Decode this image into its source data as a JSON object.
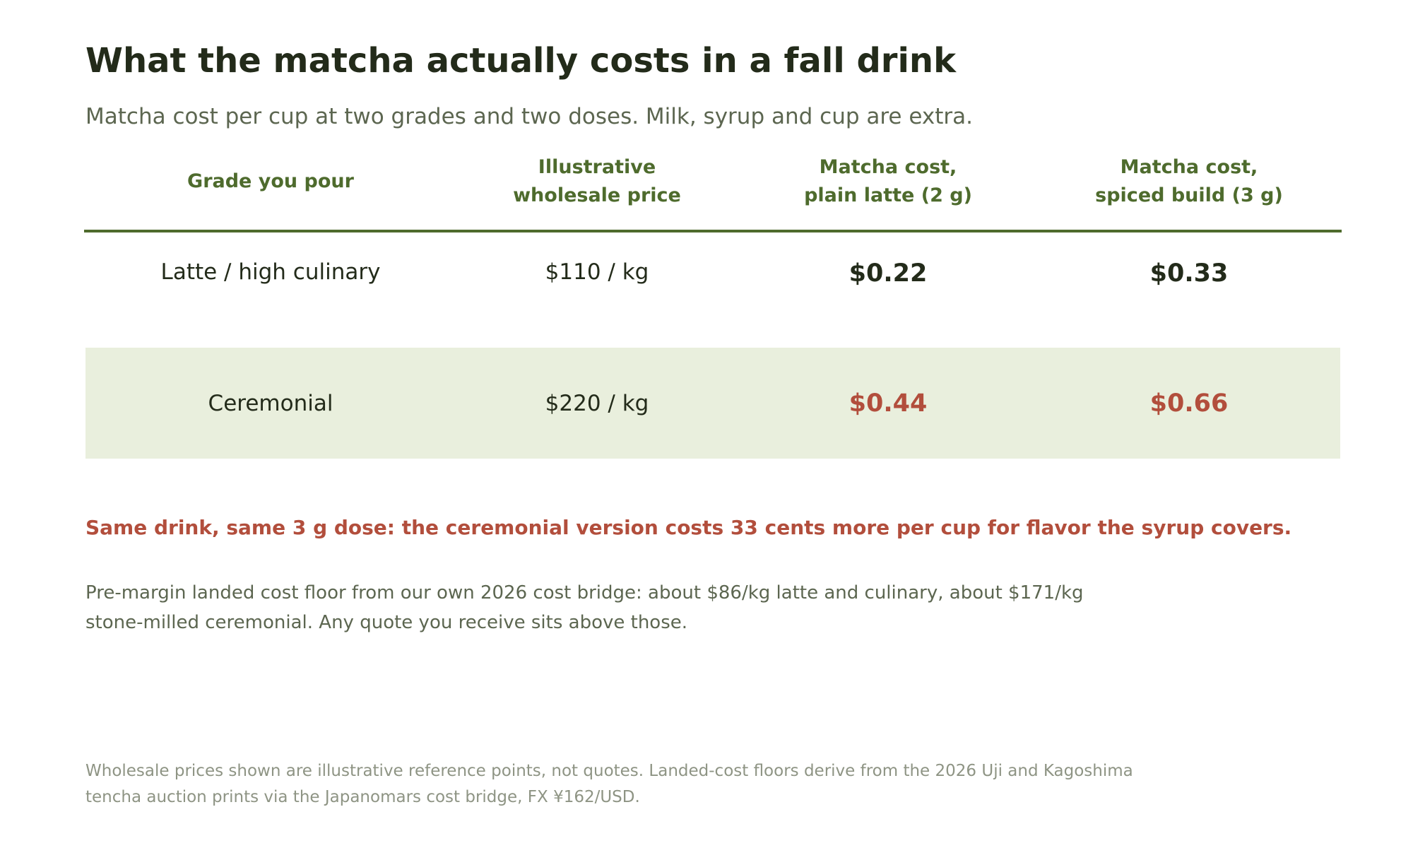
{
  "title": "What the matcha actually costs in a fall drink",
  "subtitle": "Matcha cost per cup at two grades and two doses. Milk, syrup and cup are extra.",
  "table": {
    "headers": [
      "Grade you pour",
      "Illustrative\nwholesale price",
      "Matcha cost,\nplain latte (2 g)",
      "Matcha cost,\nspiced build (3 g)"
    ],
    "rows": [
      {
        "grade": "Latte / high culinary",
        "price": "$110 / kg",
        "plain": "$0.22",
        "spiced": "$0.33"
      },
      {
        "grade": "Ceremonial",
        "price": "$220 / kg",
        "plain": "$0.44",
        "spiced": "$0.66"
      }
    ]
  },
  "callout": "Same drink, same 3 g dose: the ceremonial version costs 33 cents more per cup for flavor the syrup covers.",
  "note": "Pre-margin landed cost floor from our own 2026 cost bridge: about $86/kg latte and culinary, about $171/kg stone-milled ceremonial. Any quote you receive sits above those.",
  "source": "Wholesale prices shown are illustrative reference points, not quotes. Landed-cost floors derive from the 2026 Uji and Kagoshima tencha auction prints via the Japanomars cost bridge, FX ¥162/USD.",
  "colors": {
    "heading": "#232b1a",
    "accent_green": "#4e6b2d",
    "highlight_row": "#e9efdd",
    "accent_red": "#b24e3c",
    "muted": "#5c6650"
  }
}
